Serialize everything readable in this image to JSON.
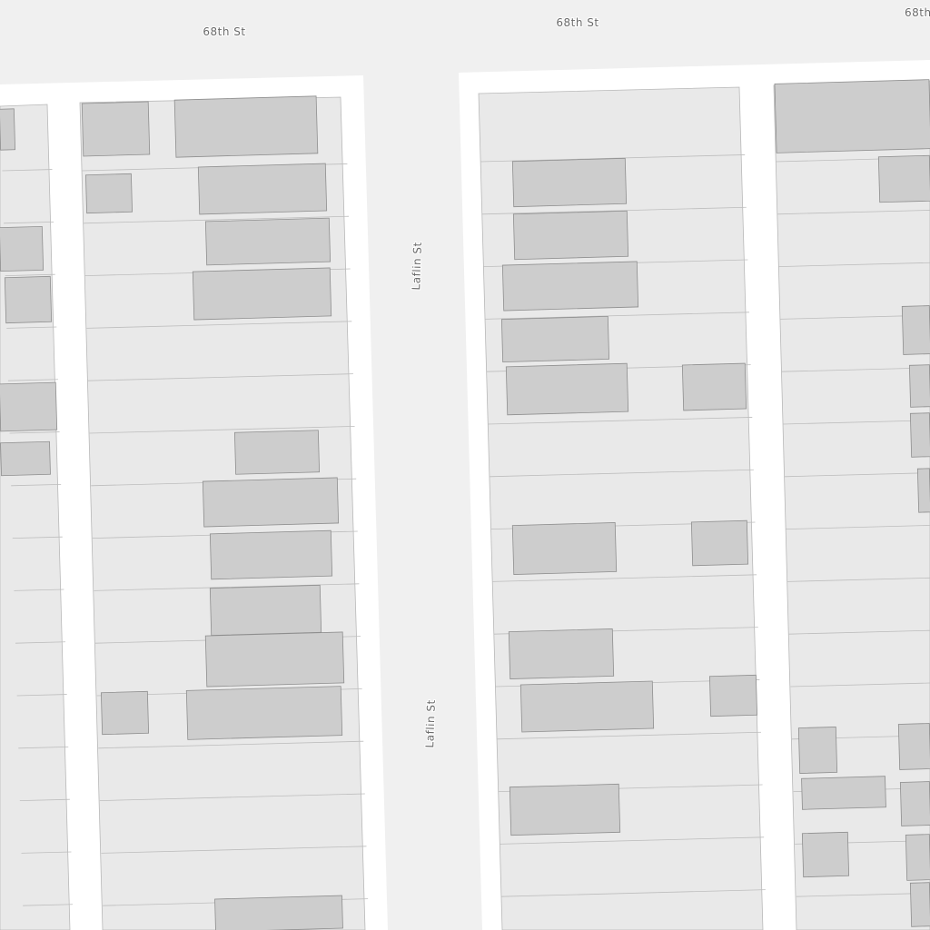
{
  "street_labels": [
    "68th St",
    "68th St",
    "68th",
    "Laflin St",
    "Laflin St"
  ]
}
